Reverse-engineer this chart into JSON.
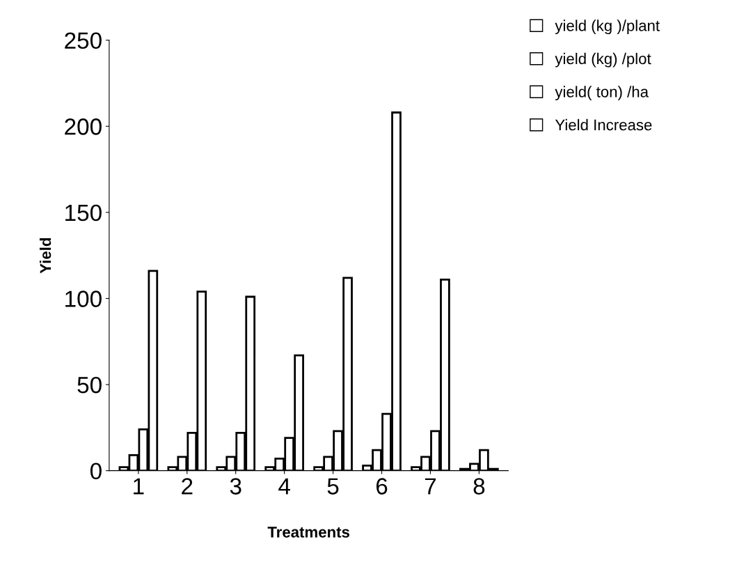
{
  "chart_data": {
    "type": "bar",
    "xlabel": "Treatments",
    "ylabel": "Yield",
    "categories": [
      "1",
      "2",
      "3",
      "4",
      "5",
      "6",
      "7",
      "8"
    ],
    "series": [
      {
        "name": "yield (kg )/plant",
        "color": "#ffffff",
        "values": [
          2,
          2,
          2,
          2,
          2,
          3,
          2,
          1
        ]
      },
      {
        "name": "yield (kg) /plot",
        "color": "#ffffff",
        "values": [
          9,
          8,
          8,
          7,
          8,
          12,
          8,
          4
        ]
      },
      {
        "name": "yield( ton) /ha",
        "color": "#ffffff",
        "values": [
          24,
          22,
          22,
          19,
          23,
          33,
          23,
          12
        ]
      },
      {
        "name": "Yield Increase",
        "color": "#ffffff",
        "values": [
          116,
          104,
          101,
          67,
          112,
          208,
          111,
          1
        ]
      }
    ],
    "ylim": [
      0,
      250
    ],
    "yticks": [
      0,
      50,
      100,
      150,
      200,
      250
    ],
    "grid": false,
    "legend": "top right"
  }
}
